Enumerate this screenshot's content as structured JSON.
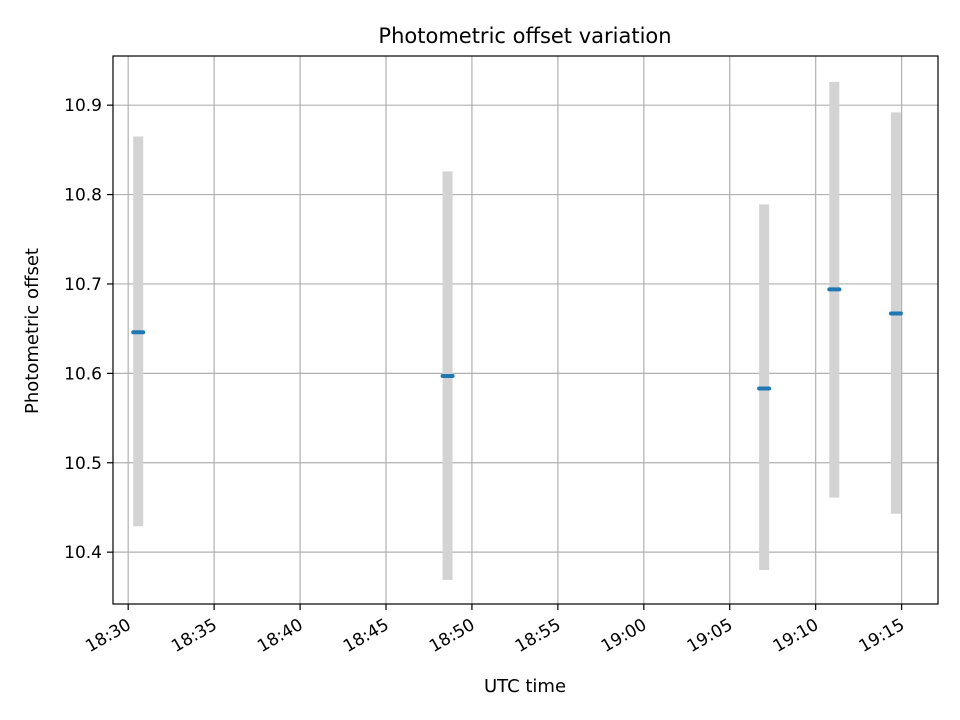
{
  "chart_data": {
    "type": "scatter",
    "title": "Photometric offset variation",
    "xlabel": "UTC time",
    "ylabel": "Photometric offset",
    "x_ticks": [
      "18:30",
      "18:35",
      "18:40",
      "18:45",
      "18:50",
      "18:55",
      "19:00",
      "19:05",
      "19:10",
      "19:15"
    ],
    "y_ticks": [
      "10.4",
      "10.5",
      "10.6",
      "10.7",
      "10.8",
      "10.9"
    ],
    "xlim": [
      "18:29:07",
      "19:17:07"
    ],
    "ylim": [
      10.342,
      10.955
    ],
    "grid": true,
    "points": [
      {
        "x": "18:30:35",
        "y": 10.646,
        "ylow": 10.429,
        "yhigh": 10.865
      },
      {
        "x": "18:48:35",
        "y": 10.597,
        "ylow": 10.369,
        "yhigh": 10.826
      },
      {
        "x": "19:07:00",
        "y": 10.583,
        "ylow": 10.38,
        "yhigh": 10.789
      },
      {
        "x": "19:11:05",
        "y": 10.694,
        "ylow": 10.461,
        "yhigh": 10.926
      },
      {
        "x": "19:14:40",
        "y": 10.667,
        "ylow": 10.443,
        "yhigh": 10.892
      }
    ],
    "colors": {
      "point": "#1f77b4",
      "errorbar": "#d3d3d3",
      "grid": "#b0b0b0"
    }
  }
}
